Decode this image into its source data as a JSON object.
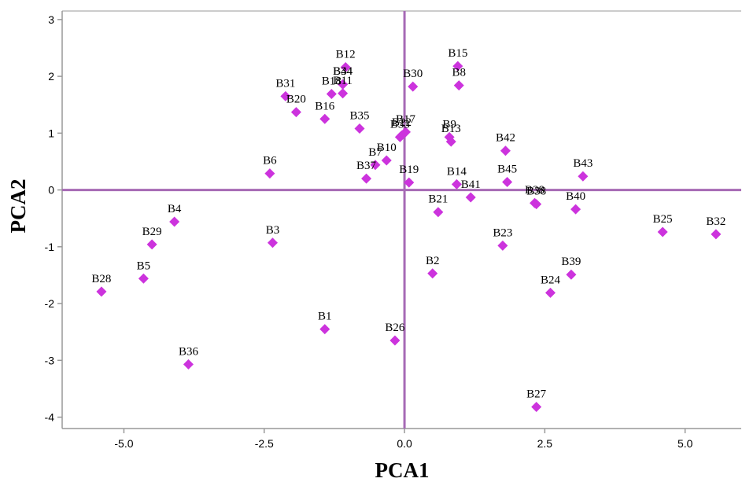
{
  "chart_data": {
    "type": "scatter",
    "title": "",
    "xlabel": "PCA1",
    "ylabel": "PCA2",
    "xlim": [
      -6.1,
      6.0
    ],
    "ylim": [
      -4.2,
      3.15
    ],
    "xticks": [
      -5.0,
      -2.5,
      0.0,
      2.5,
      5.0
    ],
    "xtick_labels": [
      "-5.0",
      "-2.5",
      "0.0",
      "2.5",
      "5.0"
    ],
    "yticks": [
      -4,
      -3,
      -2,
      -1,
      0,
      1,
      2,
      3
    ],
    "ytick_labels": [
      "-4",
      "-3",
      "-2",
      "-1",
      "0",
      "1",
      "2",
      "3"
    ],
    "reference_lines": {
      "x": 0,
      "y": 0
    },
    "grid": false,
    "legend": "none",
    "colors": {
      "marker": "#cc33dd",
      "reference_line": "#a66ab5",
      "axis": "#999999"
    },
    "series": [
      {
        "marker": "diamond",
        "points": [
          {
            "label": "B1",
            "x": -1.42,
            "y": -2.45
          },
          {
            "label": "B2",
            "x": 0.5,
            "y": -1.47
          },
          {
            "label": "B3",
            "x": -2.35,
            "y": -0.93
          },
          {
            "label": "B4",
            "x": -4.1,
            "y": -0.56
          },
          {
            "label": "B5",
            "x": -4.65,
            "y": -1.56
          },
          {
            "label": "B6",
            "x": -2.4,
            "y": 0.29
          },
          {
            "label": "B7",
            "x": -0.52,
            "y": 0.44
          },
          {
            "label": "B8",
            "x": 0.97,
            "y": 1.84
          },
          {
            "label": "B9",
            "x": 0.8,
            "y": 0.93
          },
          {
            "label": "B10",
            "x": -0.32,
            "y": 0.52
          },
          {
            "label": "B11",
            "x": -1.1,
            "y": 1.7
          },
          {
            "label": "B12",
            "x": -1.05,
            "y": 2.16
          },
          {
            "label": "B13",
            "x": 0.83,
            "y": 0.85
          },
          {
            "label": "B14",
            "x": 0.93,
            "y": 0.1
          },
          {
            "label": "B15",
            "x": 0.95,
            "y": 2.18
          },
          {
            "label": "B16",
            "x": -1.42,
            "y": 1.25
          },
          {
            "label": "B17",
            "x": 0.02,
            "y": 1.02
          },
          {
            "label": "B18",
            "x": -1.3,
            "y": 1.69
          },
          {
            "label": "B19",
            "x": 0.08,
            "y": 0.13
          },
          {
            "label": "B20",
            "x": -1.93,
            "y": 1.37
          },
          {
            "label": "B21",
            "x": 0.6,
            "y": -0.39
          },
          {
            "label": "B22",
            "x": -0.05,
            "y": 0.96
          },
          {
            "label": "B23",
            "x": 1.75,
            "y": -0.98
          },
          {
            "label": "B24",
            "x": 2.6,
            "y": -1.81
          },
          {
            "label": "B25",
            "x": 4.6,
            "y": -0.74
          },
          {
            "label": "B26",
            "x": -0.17,
            "y": -2.65
          },
          {
            "label": "B27",
            "x": 2.35,
            "y": -3.82
          },
          {
            "label": "B28",
            "x": -5.4,
            "y": -1.79
          },
          {
            "label": "B29",
            "x": -4.5,
            "y": -0.96
          },
          {
            "label": "B30",
            "x": 0.15,
            "y": 1.82
          },
          {
            "label": "B31",
            "x": -2.12,
            "y": 1.65
          },
          {
            "label": "B32",
            "x": 5.55,
            "y": -0.78
          },
          {
            "label": "B33",
            "x": -0.08,
            "y": 0.93
          },
          {
            "label": "B34",
            "x": -1.1,
            "y": 1.86
          },
          {
            "label": "B35",
            "x": -0.8,
            "y": 1.08
          },
          {
            "label": "B36",
            "x": -3.85,
            "y": -3.07
          },
          {
            "label": "B37",
            "x": -0.68,
            "y": 0.2
          },
          {
            "label": "B38",
            "x": 2.32,
            "y": -0.23
          },
          {
            "label": "B39",
            "x": 2.97,
            "y": -1.49
          },
          {
            "label": "B40",
            "x": 3.05,
            "y": -0.34
          },
          {
            "label": "B41",
            "x": 1.18,
            "y": -0.13
          },
          {
            "label": "B42",
            "x": 1.8,
            "y": 0.69
          },
          {
            "label": "B43",
            "x": 3.18,
            "y": 0.24
          },
          {
            "label": "B44",
            "x": -1.1,
            "y": 1.86
          },
          {
            "label": "B45",
            "x": 1.83,
            "y": 0.14
          },
          {
            "label": "B38",
            "x": 2.35,
            "y": -0.25
          }
        ]
      }
    ]
  }
}
